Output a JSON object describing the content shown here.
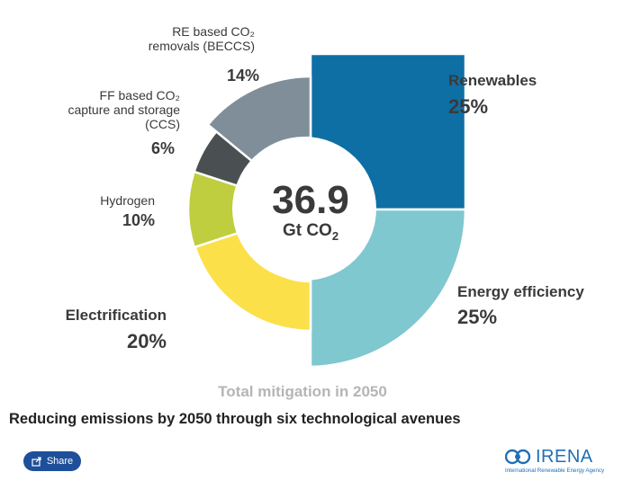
{
  "chart_data": {
    "type": "pie",
    "variant": "donut",
    "title": "Reducing emissions by 2050 through six technological avenues",
    "subtitle": "Total mitigation in 2050",
    "center": {
      "value": "36.9",
      "unit_prefix": "Gt CO",
      "unit_sub": "2"
    },
    "slices": [
      {
        "name": "renewables",
        "lines": [
          "Renewables"
        ],
        "percent_label": "25%",
        "value": 25,
        "color": "#0e6fa5"
      },
      {
        "name": "energy-efficiency",
        "lines": [
          "Energy efficiency"
        ],
        "percent_label": "25%",
        "value": 25,
        "color": "#7fc8cf"
      },
      {
        "name": "electrification",
        "lines": [
          "Electrification"
        ],
        "percent_label": "20%",
        "value": 20,
        "color": "#fbe04a"
      },
      {
        "name": "hydrogen",
        "lines": [
          "Hydrogen"
        ],
        "percent_label": "10%",
        "value": 10,
        "color": "#bfce3e"
      },
      {
        "name": "ccs",
        "lines": [
          "FF based CO₂",
          "capture and storage",
          "(CCS)"
        ],
        "percent_label": "6%",
        "value": 6,
        "color": "#4a4f52"
      },
      {
        "name": "beccs",
        "lines": [
          "RE based CO₂",
          "removals (BECCS)"
        ],
        "percent_label": "14%",
        "value": 14,
        "color": "#7f8e99"
      }
    ]
  },
  "share": {
    "label": "Share",
    "icon": "share-icon"
  },
  "logo": {
    "name": "IRENA",
    "tagline": "International Renewable Energy Agency",
    "icon": "irena-logo-icon"
  }
}
